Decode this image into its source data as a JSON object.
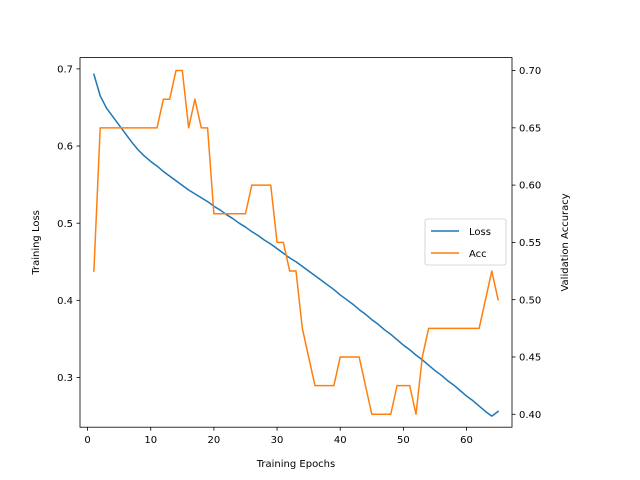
{
  "chart_data": {
    "type": "line",
    "xlabel": "Training Epochs",
    "ylabel_left": "Training Loss",
    "ylabel_right": "Validation Accuracy",
    "xlim": [
      -1.2,
      67.2
    ],
    "ylim_left": [
      0.2356,
      0.7146
    ],
    "ylim_right": [
      0.3887,
      0.7113
    ],
    "xticks": [
      0,
      10,
      20,
      30,
      40,
      50,
      60
    ],
    "yticks_left": [
      0.3,
      0.4,
      0.5,
      0.6,
      0.7
    ],
    "yticks_right": [
      0.4,
      0.45,
      0.5,
      0.55,
      0.6,
      0.65,
      0.7
    ],
    "legend": {
      "placement": "center-right"
    },
    "series": [
      {
        "name": "Loss",
        "axis": "left",
        "color": "#1f77b4",
        "x": [
          1,
          2,
          3,
          4,
          5,
          6,
          7,
          8,
          9,
          10,
          11,
          12,
          13,
          14,
          15,
          16,
          17,
          18,
          19,
          20,
          21,
          22,
          23,
          24,
          25,
          26,
          27,
          28,
          29,
          30,
          31,
          32,
          33,
          34,
          35,
          36,
          37,
          38,
          39,
          40,
          41,
          42,
          43,
          44,
          45,
          46,
          47,
          48,
          49,
          50,
          51,
          52,
          53,
          54,
          55,
          56,
          57,
          58,
          59,
          60,
          61,
          62,
          63,
          64,
          65
        ],
        "values": [
          0.693,
          0.665,
          0.649,
          0.638,
          0.627,
          0.616,
          0.605,
          0.595,
          0.587,
          0.58,
          0.574,
          0.567,
          0.561,
          0.555,
          0.549,
          0.543,
          0.538,
          0.533,
          0.528,
          0.522,
          0.517,
          0.511,
          0.506,
          0.5,
          0.495,
          0.489,
          0.484,
          0.478,
          0.473,
          0.467,
          0.461,
          0.455,
          0.45,
          0.444,
          0.438,
          0.432,
          0.426,
          0.42,
          0.414,
          0.407,
          0.401,
          0.395,
          0.388,
          0.382,
          0.375,
          0.369,
          0.362,
          0.356,
          0.349,
          0.342,
          0.336,
          0.329,
          0.323,
          0.316,
          0.309,
          0.303,
          0.296,
          0.29,
          0.283,
          0.276,
          0.27,
          0.263,
          0.256,
          0.25,
          0.256
        ]
      },
      {
        "name": "Acc",
        "axis": "right",
        "color": "#ff7f0e",
        "x": [
          1,
          2,
          3,
          4,
          5,
          6,
          7,
          8,
          9,
          10,
          11,
          12,
          13,
          14,
          15,
          16,
          17,
          18,
          19,
          20,
          21,
          22,
          23,
          24,
          25,
          26,
          27,
          28,
          29,
          30,
          31,
          32,
          33,
          34,
          35,
          36,
          37,
          38,
          39,
          40,
          41,
          42,
          43,
          44,
          45,
          46,
          47,
          48,
          49,
          50,
          51,
          52,
          53,
          54,
          55,
          56,
          57,
          58,
          59,
          60,
          61,
          62,
          63,
          64,
          65
        ],
        "values": [
          0.525,
          0.65,
          0.65,
          0.65,
          0.65,
          0.65,
          0.65,
          0.65,
          0.65,
          0.65,
          0.65,
          0.675,
          0.675,
          0.7,
          0.7,
          0.65,
          0.675,
          0.65,
          0.65,
          0.575,
          0.575,
          0.575,
          0.575,
          0.575,
          0.575,
          0.6,
          0.6,
          0.6,
          0.6,
          0.55,
          0.55,
          0.525,
          0.525,
          0.475,
          0.45,
          0.425,
          0.425,
          0.425,
          0.425,
          0.45,
          0.45,
          0.45,
          0.45,
          0.425,
          0.4,
          0.4,
          0.4,
          0.4,
          0.425,
          0.425,
          0.425,
          0.4,
          0.45,
          0.475,
          0.475,
          0.475,
          0.475,
          0.475,
          0.475,
          0.475,
          0.475,
          0.475,
          0.5,
          0.525,
          0.5
        ]
      }
    ]
  }
}
